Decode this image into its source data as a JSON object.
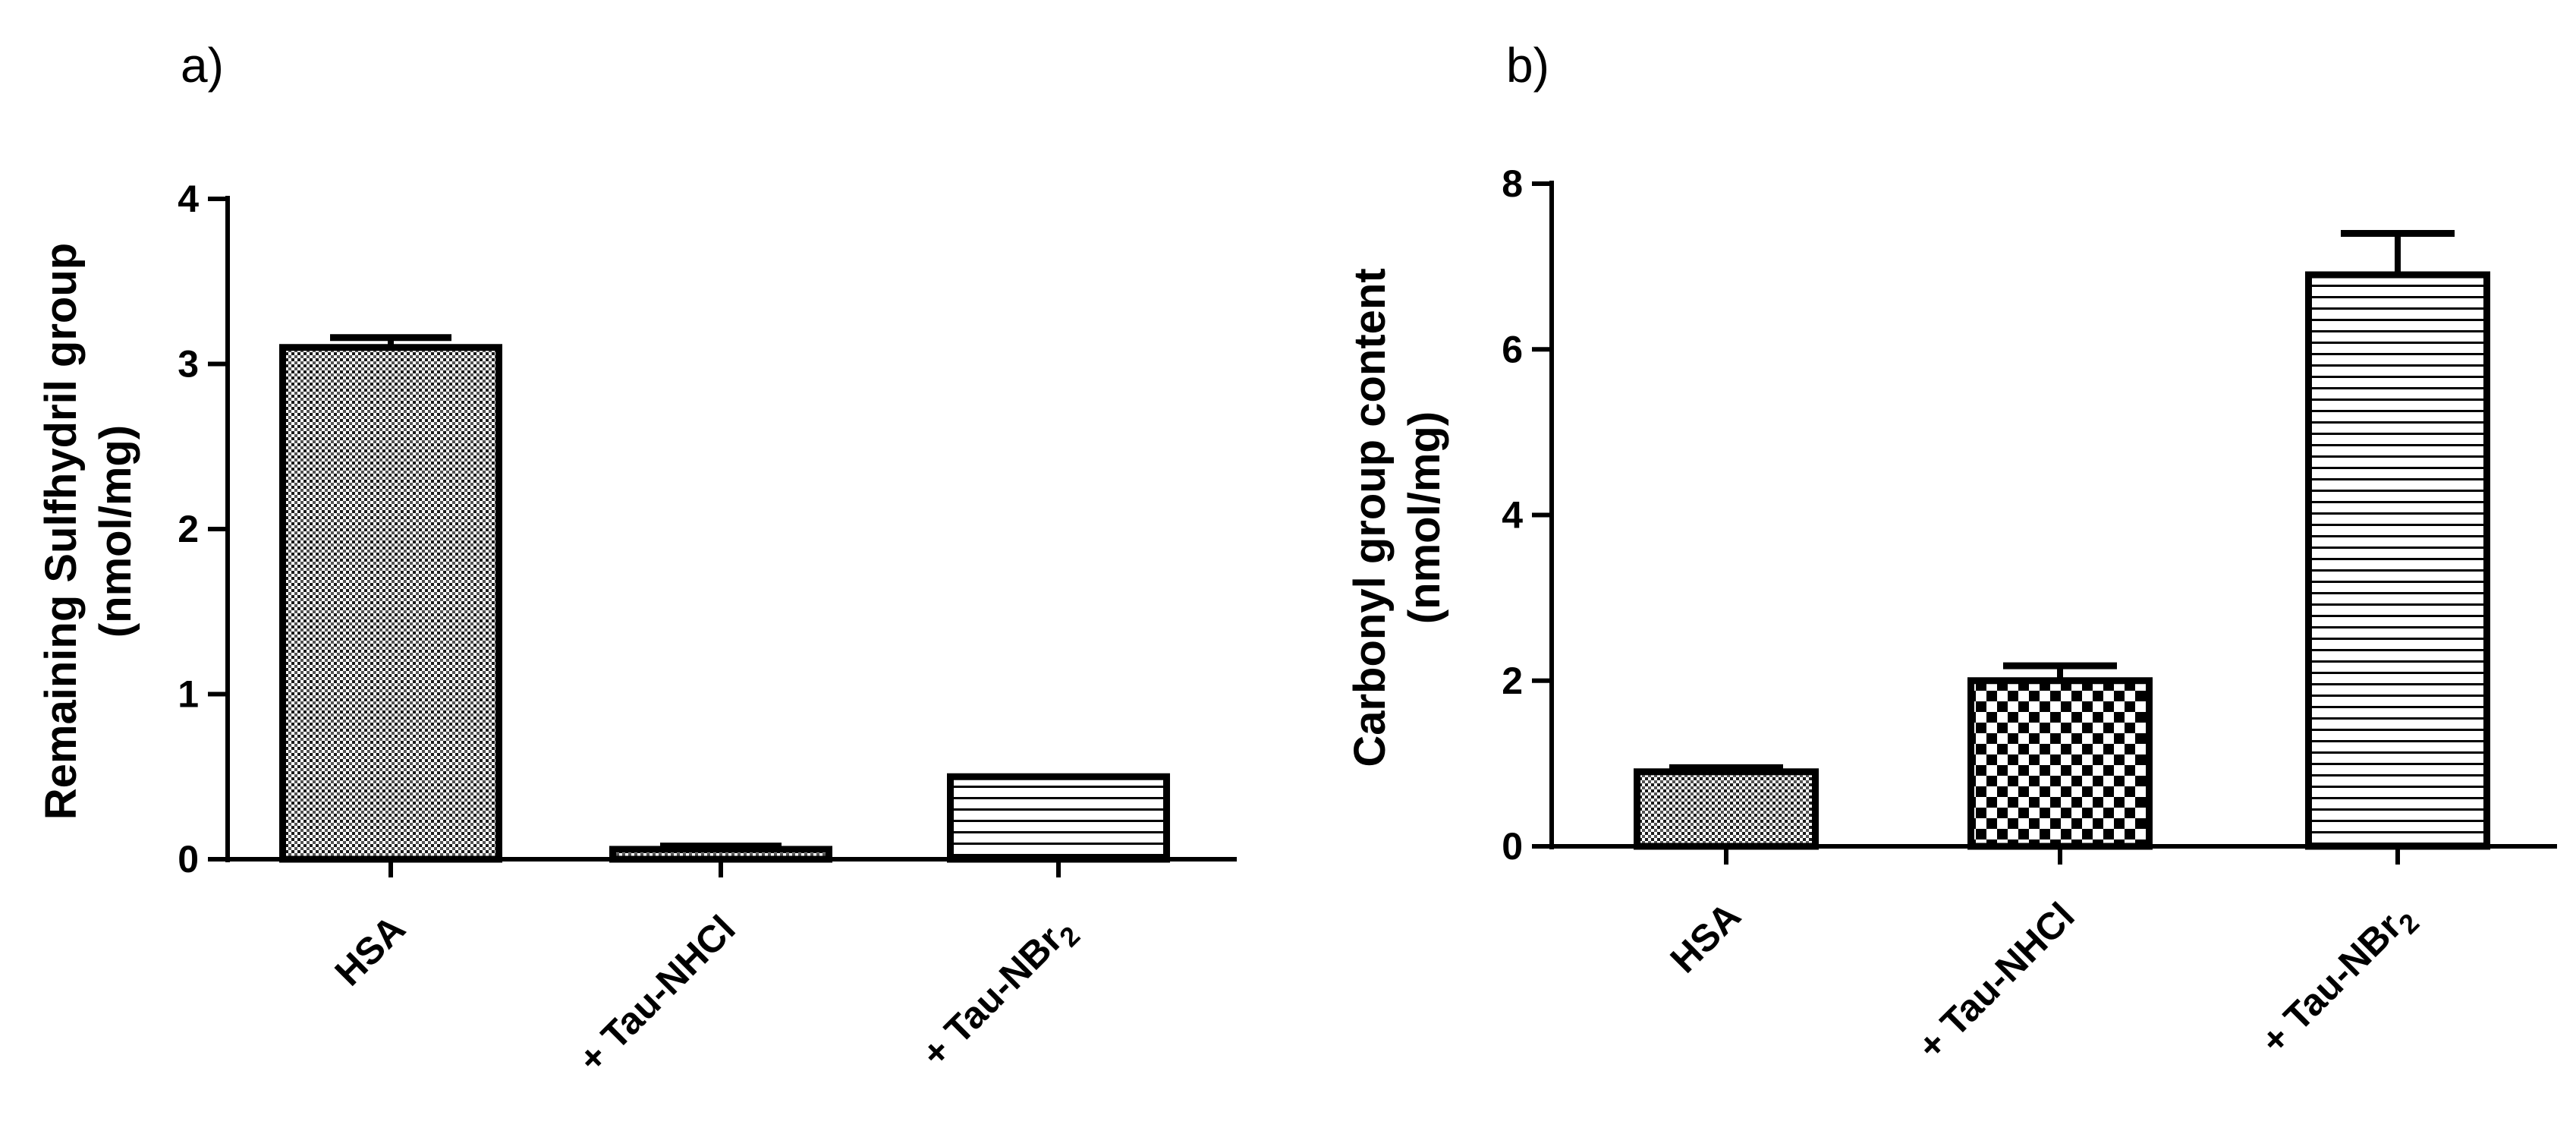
{
  "chart_data": [
    {
      "panel": "a)",
      "type": "bar",
      "categories": [
        "HSA",
        "+ Tau-NHCl",
        "+ Tau-NBr2"
      ],
      "category_parts": [
        {
          "main": "HSA",
          "sub": ""
        },
        {
          "main": "+ Tau-NBr",
          "sub": "",
          "_skip": true
        }
      ],
      "cat_labels": [
        {
          "main": "HSA",
          "sub": ""
        },
        {
          "main": "+ Tau-NHCl",
          "sub": ""
        },
        {
          "main": "+ Tau-NBr",
          "sub": "2"
        }
      ],
      "values": [
        3.1,
        0.06,
        0.5
      ],
      "errors": [
        0.06,
        0.02,
        0.0
      ],
      "patterns": [
        "fine-dots",
        "fine-dots",
        "horizontal-lines"
      ],
      "ylabel_lines": [
        "Remaining Sulfhydril group",
        "(nmol/mg)"
      ],
      "ylim": [
        0,
        4
      ],
      "yticks": [
        0,
        1,
        2,
        3,
        4
      ]
    },
    {
      "panel": "b)",
      "type": "bar",
      "categories": [
        "HSA",
        "+ Tau-NHCl",
        "+ Tau-NBr2"
      ],
      "cat_labels": [
        {
          "main": "HSA",
          "sub": ""
        },
        {
          "main": "+ Tau-NHCl",
          "sub": ""
        },
        {
          "main": "+ Tau-NBr",
          "sub": "2"
        }
      ],
      "values": [
        0.9,
        2.0,
        6.9
      ],
      "errors": [
        0.05,
        0.18,
        0.5
      ],
      "patterns": [
        "fine-dots",
        "checker",
        "horizontal-lines"
      ],
      "ylabel_lines": [
        "Carbonyl group content",
        "(nmol/mg)"
      ],
      "ylim": [
        0,
        8
      ],
      "yticks": [
        0,
        2,
        4,
        6,
        8
      ]
    }
  ]
}
